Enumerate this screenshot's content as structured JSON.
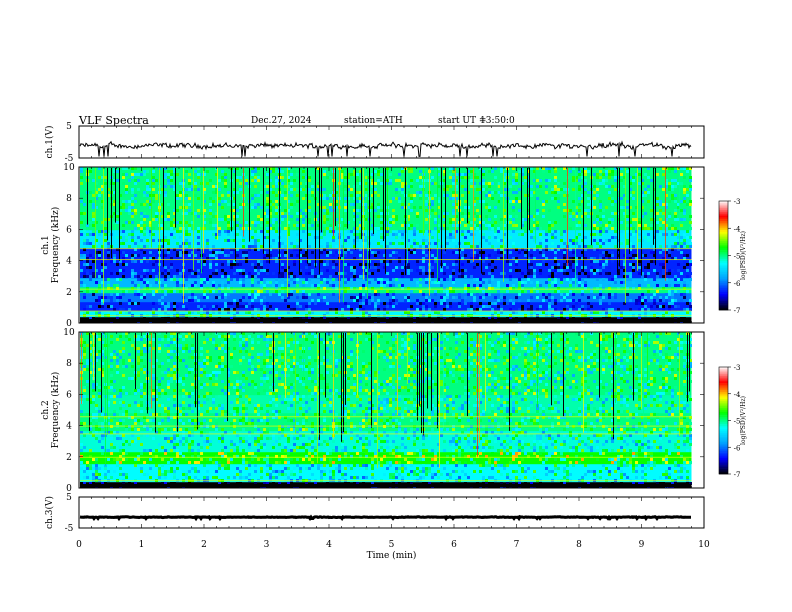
{
  "header": {
    "title": "VLF Spectra",
    "date": "Dec.27, 2024",
    "station": "station=ATH",
    "start_label": "start UT =",
    "start_time": "13:50:0"
  },
  "chart_data": [
    {
      "type": "line",
      "name": "ch1-waveform",
      "ylabel": "ch.1(V)",
      "ylim": [
        -5,
        5
      ],
      "ytick_labels": [
        "5",
        "-5"
      ],
      "xlim": [
        0,
        10
      ],
      "x_end": 9.8,
      "baseline": -1.2,
      "amplitude": 1.1,
      "line_color": "#000000"
    },
    {
      "type": "heatmap",
      "name": "ch1-spectrogram",
      "ylabel": "ch.1 Frequency (kHz)",
      "ylim": [
        0,
        10
      ],
      "ytick_labels": [
        "0",
        "2",
        "4",
        "6",
        "8",
        "10"
      ],
      "xlim": [
        0,
        10
      ],
      "x_end": 9.8,
      "colorbar": {
        "label": "log(PSD)(V²/Hz)",
        "range": [
          -7,
          -3
        ],
        "tick_labels": [
          "-3",
          "-4",
          "-5",
          "-6",
          "-7"
        ],
        "colors": [
          "#000000",
          "#0000ff",
          "#00a0ff",
          "#00ffff",
          "#00ff00",
          "#ffff00",
          "#ff0000",
          "#ffffff"
        ]
      },
      "bands": [
        {
          "from": 0,
          "to": 0.3,
          "level": -7
        },
        {
          "from": 0.3,
          "to": 0.8,
          "level": -5.3
        },
        {
          "from": 0.8,
          "to": 1.3,
          "level": -6.3
        },
        {
          "from": 1.3,
          "to": 2.0,
          "level": -6.0
        },
        {
          "from": 2.0,
          "to": 2.4,
          "level": -5.0
        },
        {
          "from": 2.4,
          "to": 2.8,
          "level": -5.7
        },
        {
          "from": 2.8,
          "to": 4.8,
          "level": -6.3
        },
        {
          "from": 4.8,
          "to": 6.0,
          "level": -5.4
        },
        {
          "from": 6.0,
          "to": 10.0,
          "level": -5.0
        }
      ]
    },
    {
      "type": "heatmap",
      "name": "ch2-spectrogram",
      "ylabel": "ch.2 Frequency (kHz)",
      "ylim": [
        0,
        10
      ],
      "ytick_labels": [
        "0",
        "2",
        "4",
        "6",
        "8",
        "10"
      ],
      "xlim": [
        0,
        10
      ],
      "x_end": 9.8,
      "colorbar": {
        "label": "log(PSD)(V²/Hz)",
        "range": [
          -7,
          -3
        ],
        "tick_labels": [
          "-3",
          "-4",
          "-5",
          "-6",
          "-7"
        ],
        "colors": [
          "#000000",
          "#0000ff",
          "#00a0ff",
          "#00ffff",
          "#00ff00",
          "#ffff00",
          "#ff0000",
          "#ffffff"
        ]
      },
      "bands": [
        {
          "from": 0,
          "to": 0.3,
          "level": -7
        },
        {
          "from": 0.3,
          "to": 1.6,
          "level": -5.3
        },
        {
          "from": 1.6,
          "to": 2.4,
          "level": -4.7
        },
        {
          "from": 2.4,
          "to": 3.6,
          "level": -5.2
        },
        {
          "from": 3.6,
          "to": 4.8,
          "level": -5.0
        },
        {
          "from": 4.8,
          "to": 6.0,
          "level": -5.1
        },
        {
          "from": 6.0,
          "to": 10.0,
          "level": -5.0
        }
      ]
    },
    {
      "type": "line",
      "name": "ch3-waveform",
      "ylabel": "ch.3(V)",
      "ylim": [
        -5,
        5
      ],
      "ytick_labels": [
        "5",
        "-5"
      ],
      "xlim": [
        0,
        10
      ],
      "x_end": 9.8,
      "baseline": -1.5,
      "amplitude": 0.15,
      "line_color": "#000000"
    }
  ],
  "x_axis": {
    "label": "Time (min)",
    "tick_labels": [
      "0",
      "1",
      "2",
      "3",
      "4",
      "5",
      "6",
      "7",
      "8",
      "9",
      "10"
    ]
  }
}
